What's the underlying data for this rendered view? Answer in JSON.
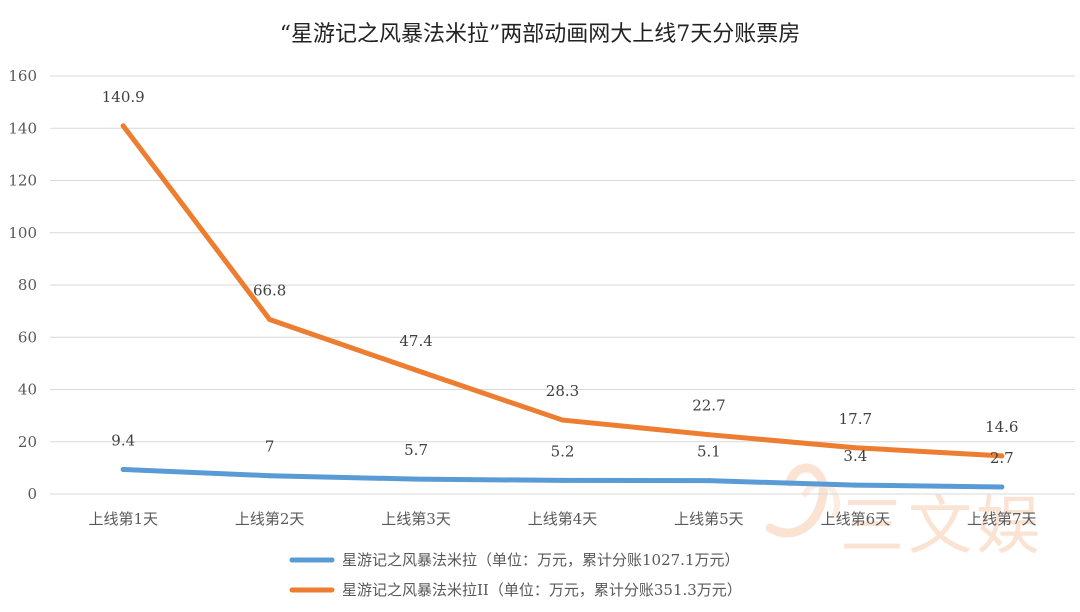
{
  "chart_data": {
    "type": "line",
    "title": "“星游记之风暴法米拉”两部动画网大上线7天分账票房",
    "categories": [
      "上线第1天",
      "上线第2天",
      "上线第3天",
      "上线第4天",
      "上线第5天",
      "上线第6天",
      "上线第7天"
    ],
    "series": [
      {
        "name": "星游记之风暴法米拉（单位：万元，累计分账1027.1万元）",
        "values": [
          9.4,
          7,
          5.7,
          5.2,
          5.1,
          3.4,
          2.7
        ],
        "labels": [
          "9.4",
          "7",
          "5.7",
          "5.2",
          "5.1",
          "3.4",
          "2.7"
        ],
        "color": "#5b9bd5"
      },
      {
        "name": "星游记之风暴法米拉II（单位：万元，累计分账351.3万元）",
        "values": [
          140.9,
          66.8,
          47.4,
          28.3,
          22.7,
          17.7,
          14.6
        ],
        "labels": [
          "140.9",
          "66.8",
          "47.4",
          "28.3",
          "22.7",
          "17.7",
          "14.6"
        ],
        "color": "#ed7d31"
      }
    ],
    "y_ticks": [
      "0",
      "20",
      "40",
      "60",
      "80",
      "100",
      "120",
      "140",
      "160"
    ],
    "ylim": [
      0,
      160
    ],
    "grid": true,
    "legend": "bottom"
  },
  "watermark": {
    "text": "三文娱",
    "color": "#f4b183"
  }
}
